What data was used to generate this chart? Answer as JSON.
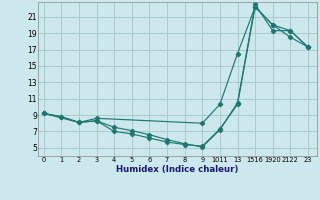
{
  "xlabel": "Humidex (Indice chaleur)",
  "bg_color": "#cce8ec",
  "grid_color": "#aacccc",
  "line_color": "#1e7870",
  "xtick_labels": [
    "0",
    "1",
    "2",
    "3",
    "4",
    "5",
    "6",
    "7",
    "8",
    "9",
    "1011",
    "13",
    "1516",
    "1920",
    "2122",
    "23"
  ],
  "xtick_pos": [
    0,
    1,
    2,
    3,
    4,
    5,
    6,
    7,
    8,
    9,
    10,
    11,
    12,
    13,
    14,
    15
  ],
  "ytick_labels": [
    "5",
    "7",
    "9",
    "11",
    "13",
    "15",
    "17",
    "19",
    "21"
  ],
  "ytick_pos": [
    5,
    7,
    9,
    11,
    13,
    15,
    17,
    19,
    21
  ],
  "xlim": [
    -0.3,
    15.5
  ],
  "ylim": [
    4.0,
    22.8
  ],
  "series1_x": [
    0,
    1,
    2,
    3,
    4,
    5,
    6,
    7,
    8,
    9,
    10,
    11,
    12,
    13,
    14,
    15
  ],
  "series1_y": [
    9.2,
    8.8,
    8.1,
    8.3,
    7.0,
    6.7,
    6.2,
    5.7,
    5.4,
    5.2,
    7.3,
    10.3,
    22.2,
    20.0,
    18.5,
    17.3
  ],
  "series2_x": [
    0,
    1,
    2,
    3,
    4,
    5,
    6,
    7,
    8,
    9,
    10,
    11,
    12,
    13,
    14,
    15
  ],
  "series2_y": [
    9.2,
    8.8,
    8.1,
    8.3,
    7.5,
    7.1,
    6.6,
    6.0,
    5.5,
    5.1,
    7.2,
    10.5,
    22.5,
    19.3,
    19.3,
    17.3
  ],
  "series3_x": [
    0,
    2,
    3,
    9,
    10,
    11,
    12,
    13,
    14,
    15
  ],
  "series3_y": [
    9.2,
    8.1,
    8.6,
    8.0,
    10.3,
    16.5,
    22.2,
    20.0,
    19.3,
    17.3
  ]
}
